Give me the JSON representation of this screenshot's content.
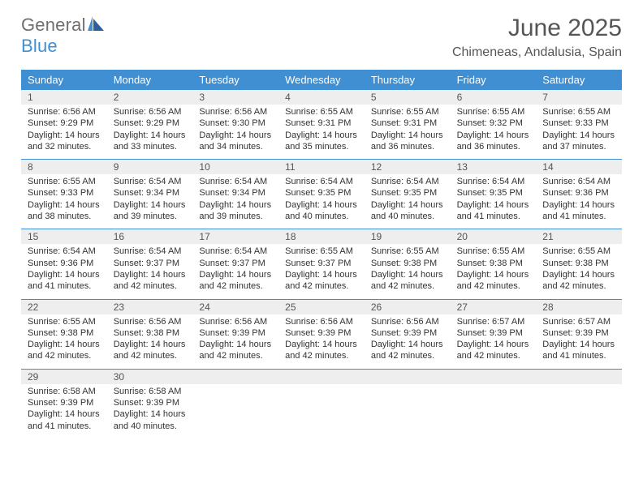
{
  "brand": {
    "general": "General",
    "blue": "Blue"
  },
  "title": {
    "month": "June 2025",
    "location": "Chimeneas, Andalusia, Spain"
  },
  "colors": {
    "header_bg": "#3f8fd2",
    "header_text": "#ffffff",
    "num_bg": "#eeeeee",
    "divider": "#3f8fd2",
    "text": "#333333",
    "muted": "#555555",
    "bg": "#ffffff"
  },
  "dayNames": [
    "Sunday",
    "Monday",
    "Tuesday",
    "Wednesday",
    "Thursday",
    "Friday",
    "Saturday"
  ],
  "weeks": [
    [
      {
        "n": "1",
        "sr": "6:56 AM",
        "ss": "9:29 PM",
        "dl": "14 hours and 32 minutes."
      },
      {
        "n": "2",
        "sr": "6:56 AM",
        "ss": "9:29 PM",
        "dl": "14 hours and 33 minutes."
      },
      {
        "n": "3",
        "sr": "6:56 AM",
        "ss": "9:30 PM",
        "dl": "14 hours and 34 minutes."
      },
      {
        "n": "4",
        "sr": "6:55 AM",
        "ss": "9:31 PM",
        "dl": "14 hours and 35 minutes."
      },
      {
        "n": "5",
        "sr": "6:55 AM",
        "ss": "9:31 PM",
        "dl": "14 hours and 36 minutes."
      },
      {
        "n": "6",
        "sr": "6:55 AM",
        "ss": "9:32 PM",
        "dl": "14 hours and 36 minutes."
      },
      {
        "n": "7",
        "sr": "6:55 AM",
        "ss": "9:33 PM",
        "dl": "14 hours and 37 minutes."
      }
    ],
    [
      {
        "n": "8",
        "sr": "6:55 AM",
        "ss": "9:33 PM",
        "dl": "14 hours and 38 minutes."
      },
      {
        "n": "9",
        "sr": "6:54 AM",
        "ss": "9:34 PM",
        "dl": "14 hours and 39 minutes."
      },
      {
        "n": "10",
        "sr": "6:54 AM",
        "ss": "9:34 PM",
        "dl": "14 hours and 39 minutes."
      },
      {
        "n": "11",
        "sr": "6:54 AM",
        "ss": "9:35 PM",
        "dl": "14 hours and 40 minutes."
      },
      {
        "n": "12",
        "sr": "6:54 AM",
        "ss": "9:35 PM",
        "dl": "14 hours and 40 minutes."
      },
      {
        "n": "13",
        "sr": "6:54 AM",
        "ss": "9:35 PM",
        "dl": "14 hours and 41 minutes."
      },
      {
        "n": "14",
        "sr": "6:54 AM",
        "ss": "9:36 PM",
        "dl": "14 hours and 41 minutes."
      }
    ],
    [
      {
        "n": "15",
        "sr": "6:54 AM",
        "ss": "9:36 PM",
        "dl": "14 hours and 41 minutes."
      },
      {
        "n": "16",
        "sr": "6:54 AM",
        "ss": "9:37 PM",
        "dl": "14 hours and 42 minutes."
      },
      {
        "n": "17",
        "sr": "6:54 AM",
        "ss": "9:37 PM",
        "dl": "14 hours and 42 minutes."
      },
      {
        "n": "18",
        "sr": "6:55 AM",
        "ss": "9:37 PM",
        "dl": "14 hours and 42 minutes."
      },
      {
        "n": "19",
        "sr": "6:55 AM",
        "ss": "9:38 PM",
        "dl": "14 hours and 42 minutes."
      },
      {
        "n": "20",
        "sr": "6:55 AM",
        "ss": "9:38 PM",
        "dl": "14 hours and 42 minutes."
      },
      {
        "n": "21",
        "sr": "6:55 AM",
        "ss": "9:38 PM",
        "dl": "14 hours and 42 minutes."
      }
    ],
    [
      {
        "n": "22",
        "sr": "6:55 AM",
        "ss": "9:38 PM",
        "dl": "14 hours and 42 minutes."
      },
      {
        "n": "23",
        "sr": "6:56 AM",
        "ss": "9:38 PM",
        "dl": "14 hours and 42 minutes."
      },
      {
        "n": "24",
        "sr": "6:56 AM",
        "ss": "9:39 PM",
        "dl": "14 hours and 42 minutes."
      },
      {
        "n": "25",
        "sr": "6:56 AM",
        "ss": "9:39 PM",
        "dl": "14 hours and 42 minutes."
      },
      {
        "n": "26",
        "sr": "6:56 AM",
        "ss": "9:39 PM",
        "dl": "14 hours and 42 minutes."
      },
      {
        "n": "27",
        "sr": "6:57 AM",
        "ss": "9:39 PM",
        "dl": "14 hours and 42 minutes."
      },
      {
        "n": "28",
        "sr": "6:57 AM",
        "ss": "9:39 PM",
        "dl": "14 hours and 41 minutes."
      }
    ],
    [
      {
        "n": "29",
        "sr": "6:58 AM",
        "ss": "9:39 PM",
        "dl": "14 hours and 41 minutes."
      },
      {
        "n": "30",
        "sr": "6:58 AM",
        "ss": "9:39 PM",
        "dl": "14 hours and 40 minutes."
      },
      null,
      null,
      null,
      null,
      null
    ]
  ],
  "labels": {
    "sunrise": "Sunrise: ",
    "sunset": "Sunset: ",
    "daylight": "Daylight: "
  }
}
